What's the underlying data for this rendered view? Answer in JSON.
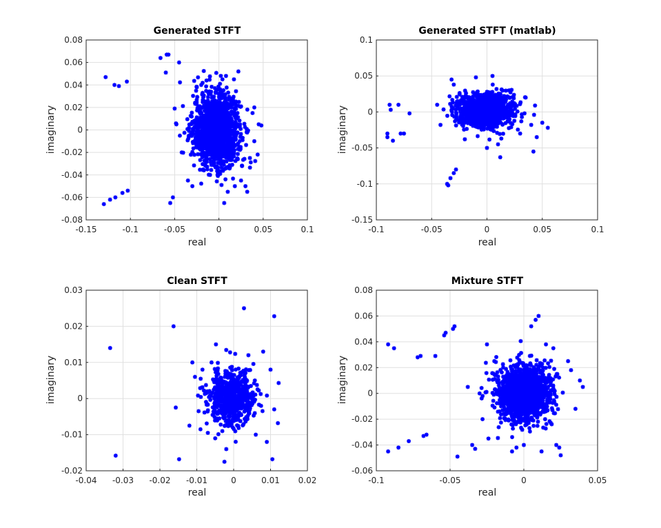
{
  "figure": {
    "background": "#ffffff",
    "marker_color": "#0000ff",
    "grid_color": "#dfdfdf",
    "axis_color": "#262626"
  },
  "chart_data": [
    {
      "type": "scatter",
      "title": "Generated STFT",
      "xlabel": "real",
      "ylabel": "imaginary",
      "xlim": [
        -0.15,
        0.1
      ],
      "ylim": [
        -0.08,
        0.08
      ],
      "xticks": [
        -0.15,
        -0.1,
        -0.05,
        0,
        0.05,
        0.1
      ],
      "yticks": [
        -0.08,
        -0.06,
        -0.04,
        -0.02,
        0,
        0.02,
        0.04,
        0.06,
        0.08
      ],
      "xtick_labels": [
        "-0.15",
        "-0.1",
        "-0.05",
        "0",
        "0.05",
        "0.1"
      ],
      "ytick_labels": [
        "-0.08",
        "-0.06",
        "-0.04",
        "-0.02",
        "0",
        "0.02",
        "0.04",
        "0.06",
        "0.08"
      ],
      "grid": true,
      "marker": "*",
      "series": [
        {
          "color": "#0000ff",
          "points": [
            [
              -0.128,
              0.047
            ],
            [
              -0.118,
              0.04
            ],
            [
              -0.113,
              0.039
            ],
            [
              -0.104,
              0.043
            ],
            [
              -0.13,
              -0.066
            ],
            [
              -0.123,
              -0.062
            ],
            [
              -0.117,
              -0.06
            ],
            [
              -0.109,
              -0.056
            ],
            [
              -0.103,
              -0.054
            ],
            [
              -0.066,
              0.064
            ],
            [
              -0.059,
              0.067
            ],
            [
              -0.057,
              0.067
            ],
            [
              -0.06,
              0.051
            ],
            [
              -0.045,
              0.06
            ],
            [
              -0.055,
              -0.065
            ],
            [
              -0.052,
              -0.06
            ],
            [
              -0.05,
              0.019
            ],
            [
              -0.048,
              0.005
            ],
            [
              -0.042,
              -0.02
            ],
            [
              -0.035,
              -0.045
            ],
            [
              -0.03,
              -0.05
            ],
            [
              -0.025,
              0.038
            ],
            [
              -0.02,
              0.04
            ],
            [
              -0.014,
              0.044
            ],
            [
              -0.01,
              -0.04
            ],
            [
              0.004,
              0.045
            ],
            [
              0.008,
              0.048
            ],
            [
              0.017,
              0.045
            ],
            [
              0.022,
              0.052
            ],
            [
              0.006,
              -0.065
            ],
            [
              0.01,
              -0.055
            ],
            [
              0.018,
              -0.05
            ],
            [
              0.025,
              -0.045
            ],
            [
              0.03,
              -0.05
            ],
            [
              0.032,
              -0.055
            ],
            [
              0.04,
              -0.01
            ],
            [
              0.045,
              0.005
            ],
            [
              0.048,
              0.004
            ],
            [
              0.038,
              0.015
            ],
            [
              0.035,
              -0.025
            ],
            [
              0.04,
              0.02
            ]
          ],
          "cluster": {
            "center": [
              -0.003,
              0.0
            ],
            "spread_x": 0.013,
            "spread_y": 0.016,
            "count": 1400
          }
        }
      ]
    },
    {
      "type": "scatter",
      "title": "Generated STFT (matlab)",
      "xlabel": "real",
      "ylabel": "imaginary",
      "xlim": [
        -0.1,
        0.1
      ],
      "ylim": [
        -0.15,
        0.1
      ],
      "xticks": [
        -0.1,
        -0.05,
        0,
        0.05,
        0.1
      ],
      "yticks": [
        -0.15,
        -0.1,
        -0.05,
        0,
        0.05,
        0.1
      ],
      "xtick_labels": [
        "-0.1",
        "-0.05",
        "0",
        "0.05",
        "0.1"
      ],
      "ytick_labels": [
        "-0.15",
        "-0.1",
        "-0.05",
        "0",
        "0.05",
        "0.1"
      ],
      "grid": true,
      "marker": "*",
      "series": [
        {
          "color": "#0000ff",
          "points": [
            [
              -0.09,
              -0.035
            ],
            [
              -0.09,
              -0.03
            ],
            [
              -0.088,
              0.01
            ],
            [
              -0.087,
              0.003
            ],
            [
              -0.085,
              -0.04
            ],
            [
              -0.08,
              0.01
            ],
            [
              -0.078,
              -0.03
            ],
            [
              -0.075,
              -0.03
            ],
            [
              -0.07,
              -0.002
            ],
            [
              -0.045,
              0.01
            ],
            [
              -0.042,
              -0.018
            ],
            [
              -0.036,
              -0.1
            ],
            [
              -0.035,
              -0.102
            ],
            [
              -0.033,
              -0.092
            ],
            [
              -0.03,
              -0.085
            ],
            [
              -0.028,
              -0.08
            ],
            [
              -0.032,
              0.045
            ],
            [
              -0.03,
              0.038
            ],
            [
              -0.01,
              0.048
            ],
            [
              0.005,
              0.05
            ],
            [
              0.01,
              -0.045
            ],
            [
              0.012,
              -0.063
            ],
            [
              0.03,
              -0.03
            ],
            [
              0.04,
              -0.018
            ],
            [
              0.042,
              -0.055
            ],
            [
              0.045,
              -0.035
            ],
            [
              0.05,
              -0.015
            ],
            [
              0.055,
              -0.022
            ],
            [
              -0.02,
              -0.038
            ],
            [
              0.0,
              -0.05
            ],
            [
              0.02,
              0.03
            ],
            [
              0.035,
              0.02
            ]
          ],
          "cluster": {
            "center": [
              -0.002,
              0.002
            ],
            "spread_x": 0.012,
            "spread_y": 0.011,
            "count": 1400
          }
        }
      ]
    },
    {
      "type": "scatter",
      "title": "Clean STFT",
      "xlabel": "real",
      "ylabel": "imaginary",
      "xlim": [
        -0.04,
        0.02
      ],
      "ylim": [
        -0.02,
        0.03
      ],
      "xticks": [
        -0.04,
        -0.03,
        -0.02,
        -0.01,
        0,
        0.01,
        0.02
      ],
      "yticks": [
        -0.02,
        -0.01,
        0,
        0.01,
        0.02,
        0.03
      ],
      "xtick_labels": [
        "-0.04",
        "-0.03",
        "-0.02",
        "-0.01",
        "0",
        "0.01",
        "0.02"
      ],
      "ytick_labels": [
        "-0.02",
        "-0.01",
        "0",
        "0.01",
        "0.02",
        "0.03"
      ],
      "grid": true,
      "marker": "*",
      "series": [
        {
          "color": "#0000ff",
          "points": [
            [
              -0.0335,
              0.014
            ],
            [
              -0.032,
              -0.0158
            ],
            [
              -0.0163,
              0.02
            ],
            [
              -0.0157,
              -0.0025
            ],
            [
              -0.0148,
              -0.0168
            ],
            [
              -0.012,
              -0.0075
            ],
            [
              -0.0112,
              0.01
            ],
            [
              -0.0105,
              0.006
            ],
            [
              -0.0095,
              -0.0035
            ],
            [
              -0.009,
              -0.0085
            ],
            [
              -0.007,
              -0.0095
            ],
            [
              -0.0072,
              0.002
            ],
            [
              -0.005,
              -0.011
            ],
            [
              -0.0048,
              0.015
            ],
            [
              -0.0025,
              -0.0175
            ],
            [
              0.0028,
              0.025
            ],
            [
              0.011,
              0.0228
            ],
            [
              0.0105,
              -0.0168
            ],
            [
              0.0122,
              0.0043
            ],
            [
              0.012,
              -0.0068
            ],
            [
              0.008,
              0.013
            ],
            [
              0.009,
              -0.012
            ],
            [
              0.01,
              0.008
            ],
            [
              0.006,
              -0.01
            ],
            [
              -0.002,
              -0.014
            ],
            [
              0.004,
              0.012
            ],
            [
              -0.006,
              0.01
            ],
            [
              0.011,
              -0.003
            ]
          ],
          "cluster": {
            "center": [
              -0.0003,
              0.0003
            ],
            "spread_x": 0.0032,
            "spread_y": 0.0038,
            "count": 600
          }
        }
      ]
    },
    {
      "type": "scatter",
      "title": "Mixture STFT",
      "xlabel": "real",
      "ylabel": "imaginary",
      "xlim": [
        -0.1,
        0.05
      ],
      "ylim": [
        -0.06,
        0.08
      ],
      "xticks": [
        -0.1,
        -0.05,
        0,
        0.05
      ],
      "yticks": [
        -0.06,
        -0.04,
        -0.02,
        0,
        0.02,
        0.04,
        0.06,
        0.08
      ],
      "xtick_labels": [
        "-0.1",
        "-0.05",
        "0",
        "0.05"
      ],
      "ytick_labels": [
        "-0.06",
        "-0.04",
        "-0.02",
        "0",
        "0.02",
        "0.04",
        "0.06",
        "0.08"
      ],
      "grid": true,
      "marker": "*",
      "series": [
        {
          "color": "#0000ff",
          "points": [
            [
              -0.092,
              0.038
            ],
            [
              -0.088,
              0.035
            ],
            [
              -0.092,
              -0.045
            ],
            [
              -0.085,
              -0.042
            ],
            [
              -0.078,
              -0.037
            ],
            [
              -0.072,
              0.028
            ],
            [
              -0.07,
              0.029
            ],
            [
              -0.068,
              -0.033
            ],
            [
              -0.066,
              -0.032
            ],
            [
              -0.06,
              0.029
            ],
            [
              -0.054,
              0.045
            ],
            [
              -0.053,
              0.047
            ],
            [
              -0.048,
              0.05
            ],
            [
              -0.047,
              0.052
            ],
            [
              -0.045,
              -0.049
            ],
            [
              -0.038,
              0.005
            ],
            [
              -0.035,
              -0.04
            ],
            [
              -0.033,
              -0.043
            ],
            [
              -0.03,
              0.0
            ],
            [
              -0.028,
              -0.02
            ],
            [
              -0.025,
              0.038
            ],
            [
              -0.024,
              -0.035
            ],
            [
              -0.02,
              0.025
            ],
            [
              0.005,
              0.052
            ],
            [
              0.008,
              0.057
            ],
            [
              0.01,
              0.06
            ],
            [
              0.012,
              -0.045
            ],
            [
              0.015,
              0.038
            ],
            [
              0.02,
              0.035
            ],
            [
              0.022,
              -0.04
            ],
            [
              0.024,
              -0.042
            ],
            [
              0.025,
              -0.048
            ],
            [
              0.03,
              0.025
            ],
            [
              0.032,
              0.018
            ],
            [
              0.035,
              -0.012
            ],
            [
              0.038,
              0.01
            ],
            [
              0.04,
              0.005
            ],
            [
              -0.008,
              -0.045
            ],
            [
              -0.005,
              -0.042
            ],
            [
              0.0,
              -0.04
            ]
          ],
          "cluster": {
            "center": [
              0.0,
              0.0
            ],
            "spread_x": 0.009,
            "spread_y": 0.011,
            "count": 1500
          }
        }
      ]
    }
  ]
}
